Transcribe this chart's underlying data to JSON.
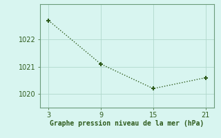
{
  "x": [
    3,
    9,
    15,
    21
  ],
  "y": [
    1022.7,
    1021.1,
    1020.2,
    1020.6
  ],
  "line_color": "#2d5a1b",
  "marker": "+",
  "marker_size": 5,
  "marker_linewidth": 1.5,
  "line_width": 1.0,
  "line_style": "dotted",
  "xlabel": "Graphe pression niveau de la mer (hPa)",
  "xlabel_fontsize": 7,
  "xticks": [
    3,
    9,
    15,
    21
  ],
  "yticks": [
    1020,
    1021,
    1022
  ],
  "xlim": [
    2.0,
    22.0
  ],
  "ylim": [
    1019.5,
    1023.3
  ],
  "background_color": "#d8f5f0",
  "grid_color": "#b0d8cc",
  "spine_color": "#6a9a7a",
  "tick_fontsize": 7
}
